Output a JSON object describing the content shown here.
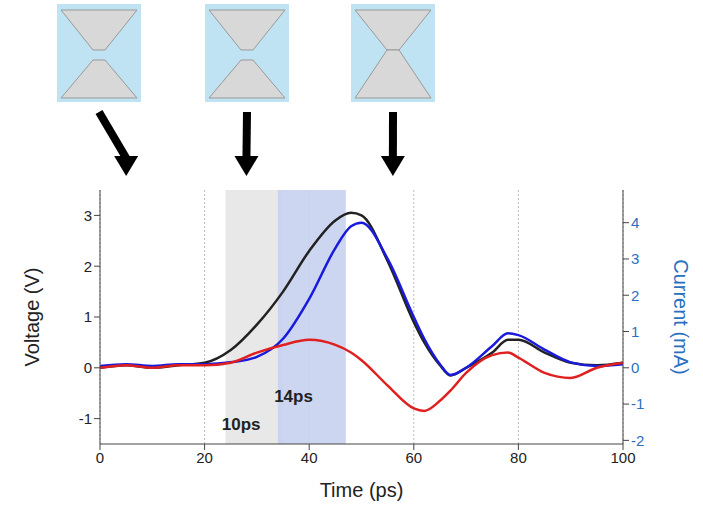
{
  "chart_data": {
    "type": "line",
    "xlabel": "Time (ps)",
    "ylabel": "Voltage (V)",
    "y2label": "Current (mA)",
    "x": [
      0,
      5,
      10,
      15,
      20,
      25,
      30,
      35,
      40,
      45,
      48,
      50,
      55,
      60,
      62,
      65,
      67,
      70,
      75,
      78,
      80,
      85,
      90,
      95,
      100
    ],
    "series": [
      {
        "color": "#222222",
        "axis": "y",
        "values": [
          0,
          0.05,
          0,
          0.05,
          0.1,
          0.35,
          0.85,
          1.5,
          2.3,
          2.9,
          3.05,
          3.0,
          2.1,
          0.9,
          0.5,
          0.05,
          -0.15,
          0.0,
          0.3,
          0.55,
          0.55,
          0.3,
          0.1,
          0.05,
          0.1
        ]
      },
      {
        "color": "#1a1adb",
        "axis": "y2",
        "values": [
          0.05,
          0.1,
          0.05,
          0.1,
          0.1,
          0.15,
          0.3,
          0.8,
          1.9,
          3.3,
          3.9,
          4.0,
          3.0,
          1.4,
          0.8,
          0.1,
          -0.2,
          0.0,
          0.6,
          0.95,
          0.9,
          0.5,
          0.15,
          0.05,
          0.1
        ]
      },
      {
        "color": "#e02020",
        "axis": "y",
        "values": [
          0,
          0.05,
          0,
          0.05,
          0.05,
          0.1,
          0.3,
          0.45,
          0.55,
          0.45,
          0.3,
          0.15,
          -0.35,
          -0.8,
          -0.85,
          -0.65,
          -0.45,
          -0.1,
          0.25,
          0.3,
          0.2,
          -0.1,
          -0.2,
          0.0,
          0.1
        ]
      }
    ],
    "xlim": [
      0,
      100
    ],
    "xticks": [
      0,
      20,
      40,
      60,
      80,
      100
    ],
    "ylim": [
      -1.5,
      3.5
    ],
    "yticks": [
      -1,
      0,
      1,
      2,
      3
    ],
    "y2lim": [
      -2.1,
      4.9
    ],
    "y2ticks": [
      -2,
      -1,
      0,
      1,
      2,
      3,
      4
    ],
    "grid": true,
    "shaded_regions": [
      {
        "x": [
          24,
          35
        ],
        "color": "#e6e6e6"
      },
      {
        "x": [
          34,
          47
        ],
        "color": "#c8d2ee"
      }
    ],
    "annotations": [
      {
        "text": "10ps",
        "x": 27,
        "y": -1.1
      },
      {
        "text": "14ps",
        "x": 37,
        "y": -0.55
      }
    ]
  }
}
